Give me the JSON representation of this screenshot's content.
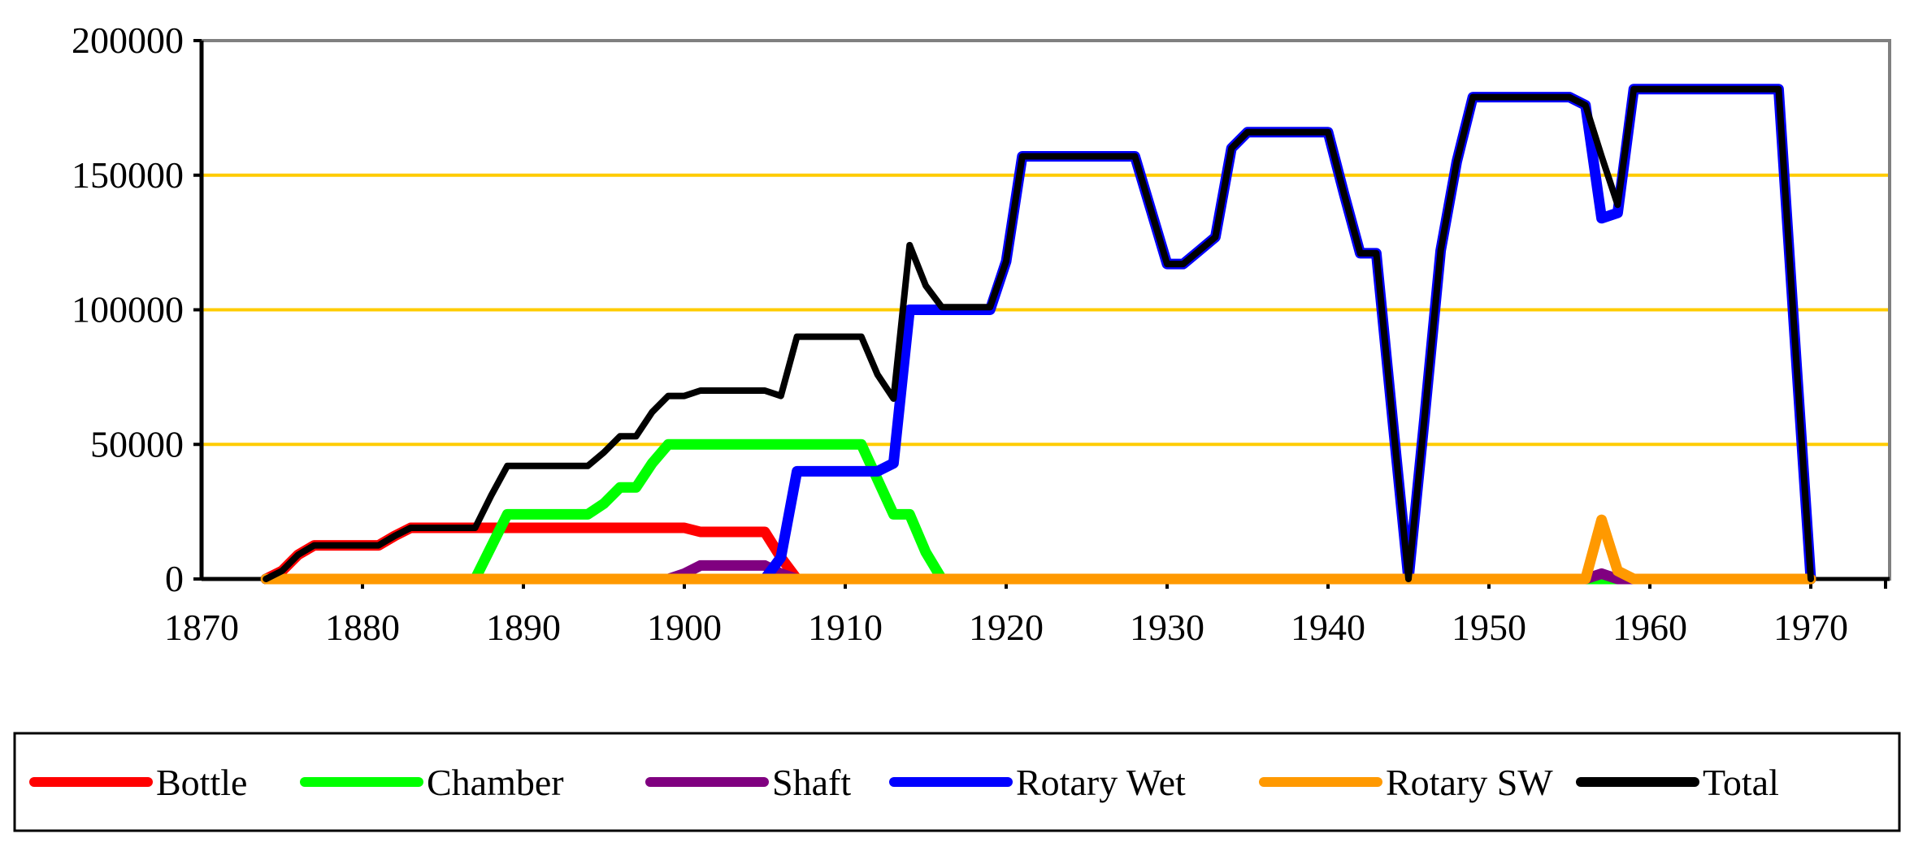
{
  "chart_data": {
    "type": "line",
    "title": "",
    "xlabel": "",
    "ylabel": "",
    "xlim": [
      1870,
      1975
    ],
    "ylim": [
      0,
      200000
    ],
    "x_ticks": [
      "1870",
      "1880",
      "1890",
      "1900",
      "1910",
      "1920",
      "1930",
      "1940",
      "1950",
      "1960",
      "1970"
    ],
    "y_ticks": [
      "0",
      "50000",
      "100000",
      "150000",
      "200000"
    ],
    "grid": "horizontal",
    "grid_color": "#FFCC00",
    "legend_position": "bottom",
    "x": [
      1874,
      1875,
      1876,
      1877,
      1878,
      1879,
      1880,
      1881,
      1882,
      1883,
      1884,
      1885,
      1886,
      1887,
      1888,
      1889,
      1890,
      1891,
      1892,
      1893,
      1894,
      1895,
      1896,
      1897,
      1898,
      1899,
      1900,
      1901,
      1902,
      1903,
      1904,
      1905,
      1906,
      1907,
      1908,
      1909,
      1910,
      1911,
      1912,
      1913,
      1914,
      1915,
      1916,
      1917,
      1918,
      1919,
      1920,
      1921,
      1922,
      1923,
      1924,
      1925,
      1926,
      1927,
      1928,
      1929,
      1930,
      1931,
      1932,
      1933,
      1934,
      1935,
      1936,
      1937,
      1938,
      1939,
      1940,
      1941,
      1942,
      1943,
      1944,
      1945,
      1946,
      1947,
      1948,
      1949,
      1950,
      1951,
      1952,
      1953,
      1954,
      1955,
      1956,
      1957,
      1958,
      1959,
      1960,
      1961,
      1962,
      1963,
      1964,
      1965,
      1966,
      1967,
      1968,
      1969,
      1970
    ],
    "series": [
      {
        "name": "Bottle",
        "color": "#FF0000",
        "values": [
          0,
          3000,
          9000,
          12500,
          12500,
          12500,
          12500,
          12500,
          16000,
          19000,
          19000,
          19000,
          19000,
          19000,
          19000,
          19000,
          19000,
          19000,
          19000,
          19000,
          19000,
          19000,
          19000,
          19000,
          19000,
          19000,
          19000,
          17500,
          17500,
          17500,
          17500,
          17500,
          8000,
          0,
          0,
          0,
          0,
          0,
          0,
          0,
          0,
          0,
          0,
          0,
          0,
          0,
          0,
          0,
          0,
          0,
          0,
          0,
          0,
          0,
          0,
          0,
          0,
          0,
          0,
          0,
          0,
          0,
          0,
          0,
          0,
          0,
          0,
          0,
          0,
          0,
          0,
          0,
          0,
          0,
          0,
          0,
          0,
          0,
          0,
          0,
          0,
          0,
          0,
          0,
          0,
          0,
          0,
          0,
          0,
          0,
          0,
          0,
          0,
          0,
          0,
          0,
          0
        ]
      },
      {
        "name": "Chamber",
        "color": "#00FF00",
        "values": [
          0,
          0,
          0,
          0,
          0,
          0,
          0,
          0,
          0,
          0,
          0,
          0,
          0,
          0,
          12000,
          24000,
          24000,
          24000,
          24000,
          24000,
          24000,
          28000,
          34000,
          34000,
          43000,
          50000,
          50000,
          50000,
          50000,
          50000,
          50000,
          50000,
          50000,
          50000,
          50000,
          50000,
          50000,
          50000,
          37000,
          24000,
          24000,
          10000,
          0,
          0,
          0,
          0,
          0,
          0,
          0,
          0,
          0,
          0,
          0,
          0,
          0,
          0,
          0,
          0,
          0,
          0,
          0,
          0,
          0,
          0,
          0,
          0,
          0,
          0,
          0,
          0,
          0,
          0,
          0,
          0,
          0,
          0,
          0,
          0,
          0,
          0,
          0,
          0,
          0,
          0,
          0,
          0,
          0,
          0,
          0,
          0,
          0,
          0,
          0,
          0,
          0,
          0,
          0
        ]
      },
      {
        "name": "Shaft",
        "color": "#800080",
        "values": [
          0,
          0,
          0,
          0,
          0,
          0,
          0,
          0,
          0,
          0,
          0,
          0,
          0,
          0,
          0,
          0,
          0,
          0,
          0,
          0,
          0,
          0,
          0,
          0,
          0,
          0,
          2000,
          5000,
          5000,
          5000,
          5000,
          5000,
          2000,
          0,
          0,
          0,
          0,
          0,
          0,
          0,
          0,
          0,
          0,
          0,
          0,
          0,
          0,
          0,
          0,
          0,
          0,
          0,
          0,
          0,
          0,
          0,
          0,
          0,
          0,
          0,
          0,
          0,
          0,
          0,
          0,
          0,
          0,
          0,
          0,
          0,
          0,
          0,
          0,
          0,
          0,
          0,
          0,
          0,
          0,
          0,
          0,
          0,
          0,
          2000,
          0,
          0,
          0,
          0,
          0,
          0,
          0,
          0,
          0,
          0,
          0,
          0,
          0
        ]
      },
      {
        "name": "Rotary Wet",
        "color": "#0000FF",
        "values": [
          0,
          0,
          0,
          0,
          0,
          0,
          0,
          0,
          0,
          0,
          0,
          0,
          0,
          0,
          0,
          0,
          0,
          0,
          0,
          0,
          0,
          0,
          0,
          0,
          0,
          0,
          0,
          0,
          0,
          0,
          0,
          0,
          8000,
          40000,
          40000,
          40000,
          40000,
          40000,
          40000,
          43000,
          100000,
          100000,
          100000,
          100000,
          100000,
          100000,
          118000,
          157000,
          157000,
          157000,
          157000,
          157000,
          157000,
          157000,
          157000,
          137000,
          117000,
          117000,
          122000,
          127000,
          160000,
          166000,
          166000,
          166000,
          166000,
          166000,
          166000,
          143000,
          121000,
          121000,
          60000,
          0,
          60000,
          122000,
          155000,
          179000,
          179000,
          179000,
          179000,
          179000,
          179000,
          179000,
          176000,
          134000,
          136000,
          182000,
          182000,
          182000,
          182000,
          182000,
          182000,
          182000,
          182000,
          182000,
          182000,
          90000,
          0
        ]
      },
      {
        "name": "Rotary SW",
        "color": "#FF9900",
        "values": [
          0,
          0,
          0,
          0,
          0,
          0,
          0,
          0,
          0,
          0,
          0,
          0,
          0,
          0,
          0,
          0,
          0,
          0,
          0,
          0,
          0,
          0,
          0,
          0,
          0,
          0,
          0,
          0,
          0,
          0,
          0,
          0,
          0,
          0,
          0,
          0,
          0,
          0,
          0,
          0,
          0,
          0,
          0,
          0,
          0,
          0,
          0,
          0,
          0,
          0,
          0,
          0,
          0,
          0,
          0,
          0,
          0,
          0,
          0,
          0,
          0,
          0,
          0,
          0,
          0,
          0,
          0,
          0,
          0,
          0,
          0,
          0,
          0,
          0,
          0,
          0,
          0,
          0,
          0,
          0,
          0,
          0,
          0,
          22000,
          3000,
          0,
          0,
          0,
          0,
          0,
          0,
          0,
          0,
          0,
          0,
          0,
          0
        ]
      },
      {
        "name": "Total",
        "color": "#000000",
        "values": [
          0,
          3000,
          9000,
          12500,
          12500,
          12500,
          12500,
          12500,
          16000,
          19000,
          19000,
          19000,
          19000,
          19000,
          31000,
          42000,
          42000,
          42000,
          42000,
          42000,
          42000,
          47000,
          53000,
          53000,
          62000,
          68000,
          68000,
          70000,
          70000,
          70000,
          70000,
          70000,
          68000,
          90000,
          90000,
          90000,
          90000,
          90000,
          76000,
          67000,
          124000,
          109000,
          101000,
          101000,
          101000,
          101000,
          118000,
          157000,
          157000,
          157000,
          157000,
          157000,
          157000,
          157000,
          157000,
          137000,
          117000,
          117000,
          122000,
          127000,
          160000,
          166000,
          166000,
          166000,
          166000,
          166000,
          166000,
          143000,
          121000,
          121000,
          60000,
          0,
          60000,
          122000,
          155000,
          179000,
          179000,
          179000,
          179000,
          179000,
          179000,
          179000,
          176000,
          157000,
          139000,
          182000,
          182000,
          182000,
          182000,
          182000,
          182000,
          182000,
          182000,
          182000,
          182000,
          90000,
          0
        ]
      }
    ]
  }
}
